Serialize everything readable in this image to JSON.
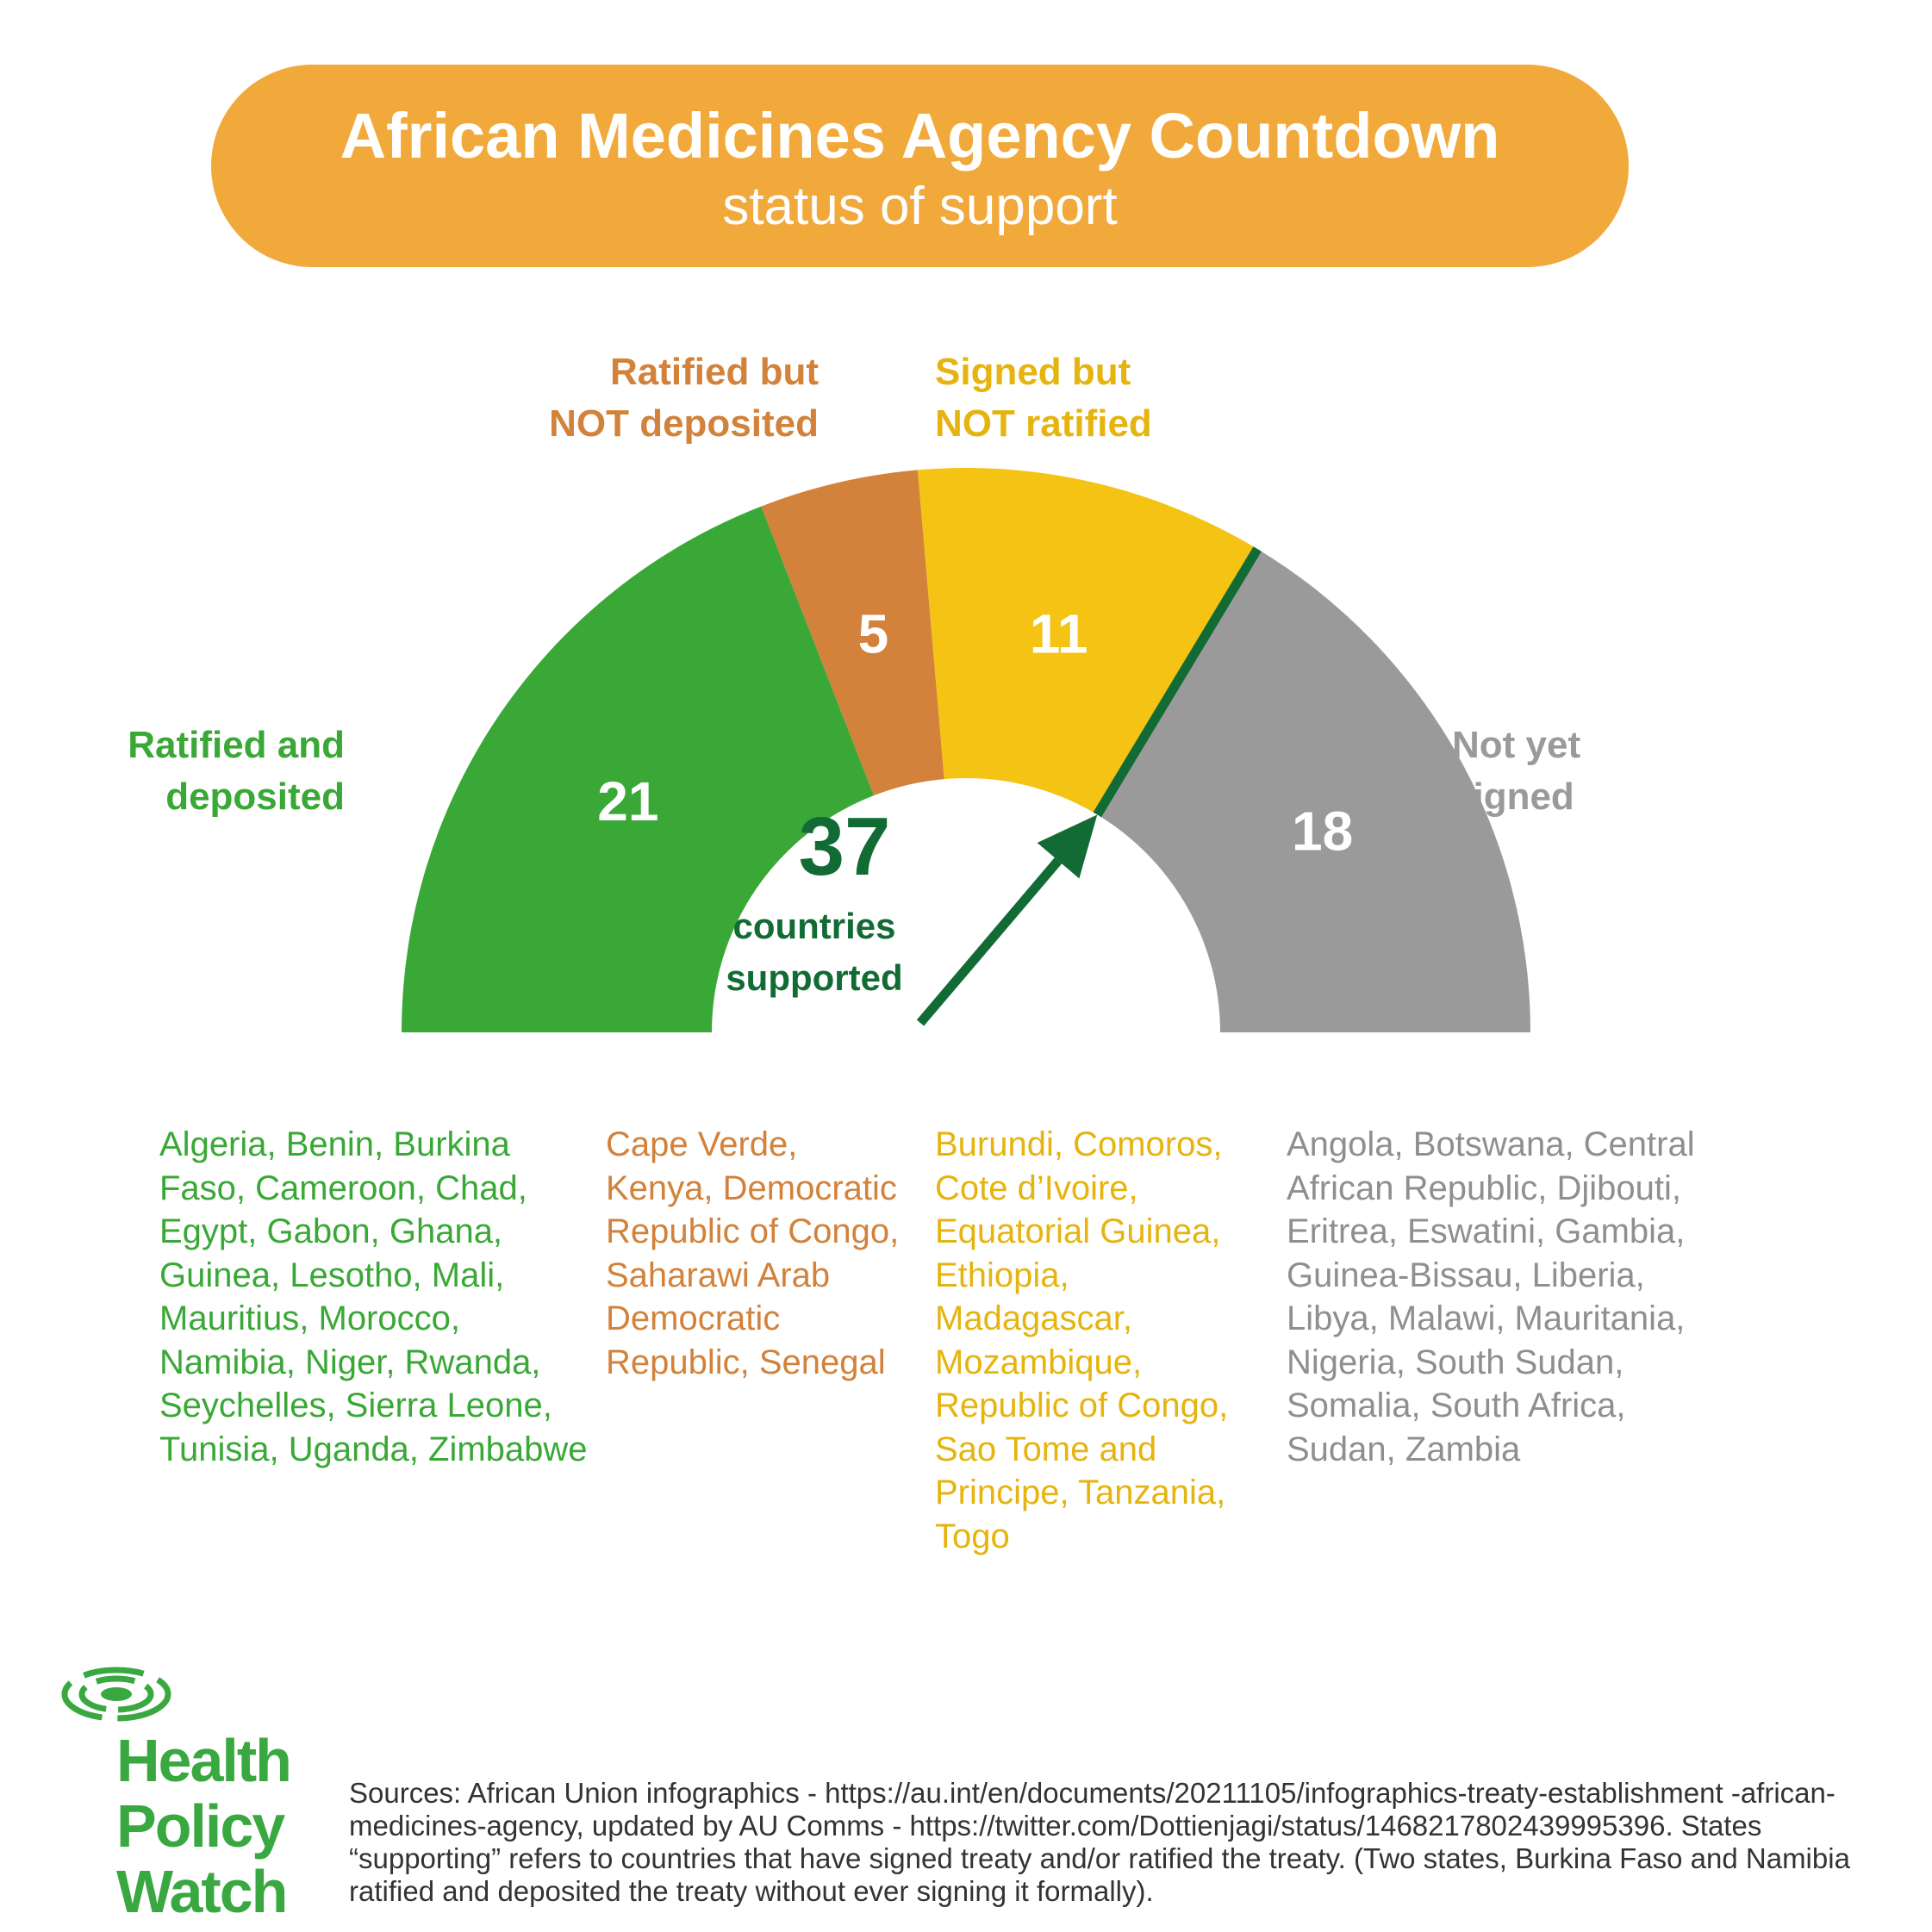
{
  "header": {
    "title": "African Medicines Agency Countdown",
    "subtitle": "status of support"
  },
  "colors": {
    "orange_banner": "#F2A93B",
    "green": "#3AA836",
    "brown": "#D2823A",
    "yellow": "#F4C314",
    "gray": "#9A9A9A",
    "dark_green": "#126B34"
  },
  "chart_data": {
    "type": "pie",
    "style": "semicircle-gauge",
    "categories": [
      "Ratified and deposited",
      "Ratified but NOT deposited",
      "Signed but NOT ratified",
      "Not yet signed"
    ],
    "values": [
      21,
      5,
      11,
      18
    ],
    "colors": [
      "#3AA836",
      "#D2823A",
      "#F4C314",
      "#9A9A9A"
    ],
    "pointer_value": 37,
    "total_supported": "37",
    "supported_label": "countries\nsupported"
  },
  "labels": {
    "ratified_deposited": "Ratified and\ndeposited",
    "ratified_not_deposited": "Ratified but\nNOT deposited",
    "signed_not_ratified": "Signed but\nNOT ratified",
    "not_signed": "Not yet\nsigned"
  },
  "lists": {
    "ratified_deposited": "Algeria, Benin, Burkina Faso, Cameroon, Chad, Egypt, Gabon, Ghana, Guinea, Lesotho, Mali, Mauritius, Morocco, Namibia, Niger, Rwanda, Seychelles, Sierra Leone, Tunisia, Uganda, Zimbabwe",
    "ratified_not_deposited": "Cape Verde, Kenya, Democratic Republic of Congo, Saharawi Arab Democratic Republic, Senegal",
    "signed_not_ratified": "Burundi, Comoros, Cote d’Ivoire, Equatorial Guinea, Ethiopia, Madagascar, Mozambique, Republic of Congo, Sao Tome and Principe, Tanzania, Togo",
    "not_signed": "Angola, Botswana, Central African Republic, Djibouti, Eritrea, Eswatini, Gambia, Guinea-Bissau, Liberia, Libya, Malawi, Mauritania, Nigeria, South Sudan, Somalia, South Africa, Sudan, Zambia"
  },
  "logo": {
    "text": "Health\nPolicy\nWatch",
    "icon": "concentric-rings-icon"
  },
  "footer": {
    "sources": "Sources: African Union infographics - https://au.int/en/documents/20211105/infographics-treaty-establishment -african-medicines-agency, updated by AU Comms - https://twitter.com/Dottienjagi/status/1468217802439995396.  States “supporting” refers to countries that have signed treaty and/or ratified the treaty.  (Two states, Burkina Faso and Namibia ratified and deposited the treaty without ever signing it formally)."
  }
}
